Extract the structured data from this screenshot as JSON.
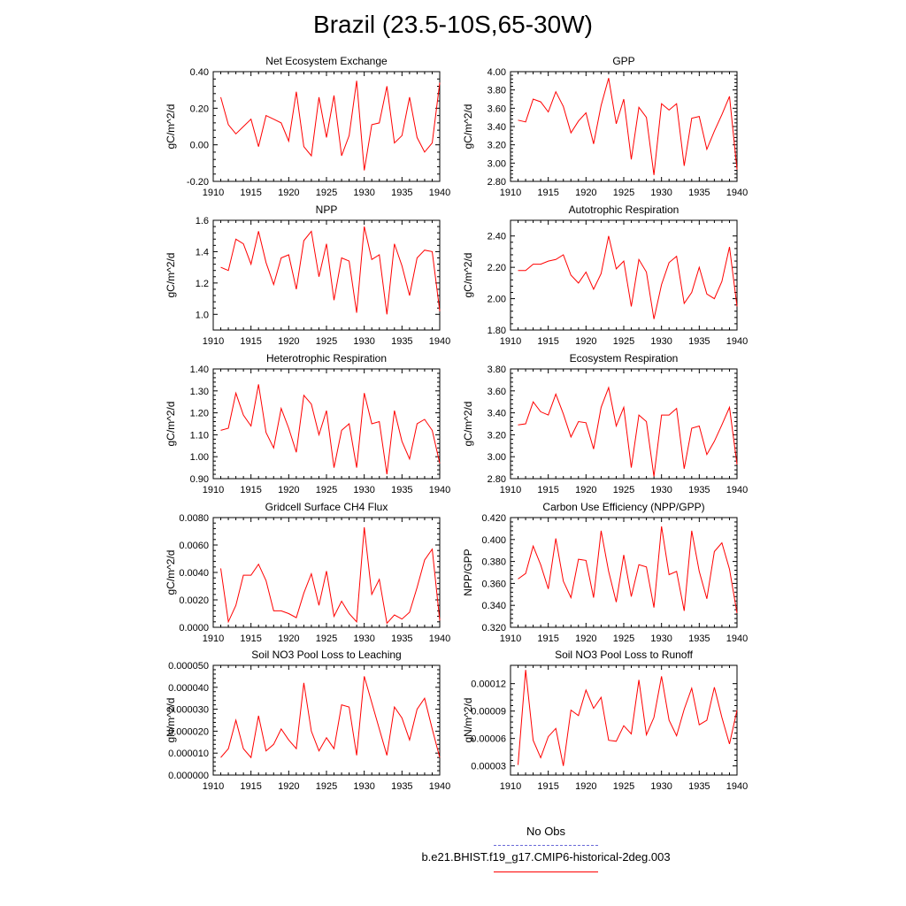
{
  "title": "Brazil (23.5-10S,65-30W)",
  "legend": {
    "obs_label": "No Obs",
    "obs_color": "#6a6ad8",
    "model_label": "b.e21.BHIST.f19_g17.CMIP6-historical-2deg.003",
    "model_color": "#ff0000"
  },
  "chart_data": [
    {
      "type": "line",
      "title": "Net Ecosystem Exchange",
      "ylabel": "gC/m^2/d",
      "xlim": [
        1910,
        1940
      ],
      "ylim": [
        -0.2,
        0.4
      ],
      "xticks": [
        1910,
        1915,
        1920,
        1925,
        1930,
        1935,
        1940
      ],
      "xtick_labels": [
        "1910",
        "1915",
        "1920",
        "1925",
        "1930",
        "1935",
        "1940"
      ],
      "yticks": [
        -0.2,
        0.0,
        0.2,
        0.4
      ],
      "ytick_labels": [
        "-0.20",
        "0.00",
        "0.20",
        "0.40"
      ],
      "x": [
        1911,
        1912,
        1913,
        1914,
        1915,
        1916,
        1917,
        1918,
        1919,
        1920,
        1921,
        1922,
        1923,
        1924,
        1925,
        1926,
        1927,
        1928,
        1929,
        1930,
        1931,
        1932,
        1933,
        1934,
        1935,
        1936,
        1937,
        1938,
        1939,
        1940
      ],
      "series": [
        {
          "values": [
            0.26,
            0.11,
            0.06,
            0.1,
            0.14,
            -0.01,
            0.16,
            0.14,
            0.12,
            0.02,
            0.29,
            -0.01,
            -0.06,
            0.26,
            0.04,
            0.27,
            -0.06,
            0.05,
            0.35,
            -0.14,
            0.11,
            0.12,
            0.32,
            0.01,
            0.05,
            0.26,
            0.04,
            -0.04,
            0.01,
            0.34
          ]
        }
      ]
    },
    {
      "type": "line",
      "title": "GPP",
      "ylabel": "gC/m^2/d",
      "xlim": [
        1910,
        1940
      ],
      "ylim": [
        2.8,
        4.0
      ],
      "xticks": [
        1910,
        1915,
        1920,
        1925,
        1930,
        1935,
        1940
      ],
      "xtick_labels": [
        "1910",
        "1915",
        "1920",
        "1925",
        "1930",
        "1935",
        "1940"
      ],
      "yticks": [
        2.8,
        3.0,
        3.2,
        3.4,
        3.6,
        3.8,
        4.0
      ],
      "ytick_labels": [
        "2.80",
        "3.00",
        "3.20",
        "3.40",
        "3.60",
        "3.80",
        "4.00"
      ],
      "x": [
        1911,
        1912,
        1913,
        1914,
        1915,
        1916,
        1917,
        1918,
        1919,
        1920,
        1921,
        1922,
        1923,
        1924,
        1925,
        1926,
        1927,
        1928,
        1929,
        1930,
        1931,
        1932,
        1933,
        1934,
        1935,
        1936,
        1937,
        1938,
        1939,
        1940
      ],
      "series": [
        {
          "values": [
            3.47,
            3.45,
            3.7,
            3.67,
            3.56,
            3.78,
            3.62,
            3.33,
            3.46,
            3.55,
            3.21,
            3.63,
            3.93,
            3.43,
            3.7,
            3.04,
            3.61,
            3.5,
            2.87,
            3.65,
            3.58,
            3.65,
            2.97,
            3.49,
            3.51,
            3.15,
            3.35,
            3.53,
            3.73,
            2.93
          ]
        }
      ]
    },
    {
      "type": "line",
      "title": "NPP",
      "ylabel": "gC/m^2/d",
      "xlim": [
        1910,
        1940
      ],
      "ylim": [
        0.9,
        1.6
      ],
      "xticks": [
        1910,
        1915,
        1920,
        1925,
        1930,
        1935,
        1940
      ],
      "xtick_labels": [
        "1910",
        "1915",
        "1920",
        "1925",
        "1930",
        "1935",
        "1940"
      ],
      "yticks": [
        1.0,
        1.2,
        1.4,
        1.6
      ],
      "ytick_labels": [
        "1.0",
        "1.2",
        "1.4",
        "1.6"
      ],
      "x": [
        1911,
        1912,
        1913,
        1914,
        1915,
        1916,
        1917,
        1918,
        1919,
        1920,
        1921,
        1922,
        1923,
        1924,
        1925,
        1926,
        1927,
        1928,
        1929,
        1930,
        1931,
        1932,
        1933,
        1934,
        1935,
        1936,
        1937,
        1938,
        1939,
        1940
      ],
      "series": [
        {
          "values": [
            1.3,
            1.28,
            1.48,
            1.45,
            1.32,
            1.53,
            1.33,
            1.19,
            1.36,
            1.38,
            1.16,
            1.47,
            1.53,
            1.24,
            1.45,
            1.09,
            1.36,
            1.34,
            1.01,
            1.56,
            1.35,
            1.38,
            1.0,
            1.45,
            1.31,
            1.12,
            1.36,
            1.41,
            1.4,
            1.02
          ]
        }
      ]
    },
    {
      "type": "line",
      "title": "Autotrophic Respiration",
      "ylabel": "gC/m^2/d",
      "xlim": [
        1910,
        1940
      ],
      "ylim": [
        1.8,
        2.5
      ],
      "xticks": [
        1910,
        1915,
        1920,
        1925,
        1930,
        1935,
        1940
      ],
      "xtick_labels": [
        "1910",
        "1915",
        "1920",
        "1925",
        "1930",
        "1935",
        "1940"
      ],
      "yticks": [
        1.8,
        2.0,
        2.2,
        2.4
      ],
      "ytick_labels": [
        "1.80",
        "2.00",
        "2.20",
        "2.40"
      ],
      "x": [
        1911,
        1912,
        1913,
        1914,
        1915,
        1916,
        1917,
        1918,
        1919,
        1920,
        1921,
        1922,
        1923,
        1924,
        1925,
        1926,
        1927,
        1928,
        1929,
        1930,
        1931,
        1932,
        1933,
        1934,
        1935,
        1936,
        1937,
        1938,
        1939,
        1940
      ],
      "series": [
        {
          "values": [
            2.18,
            2.18,
            2.22,
            2.22,
            2.24,
            2.25,
            2.28,
            2.15,
            2.1,
            2.17,
            2.06,
            2.16,
            2.4,
            2.19,
            2.24,
            1.95,
            2.25,
            2.17,
            1.87,
            2.09,
            2.23,
            2.27,
            1.97,
            2.04,
            2.2,
            2.03,
            2.0,
            2.11,
            2.33,
            1.95
          ]
        }
      ]
    },
    {
      "type": "line",
      "title": "Heterotrophic Respiration",
      "ylabel": "gC/m^2/d",
      "xlim": [
        1910,
        1940
      ],
      "ylim": [
        0.9,
        1.4
      ],
      "xticks": [
        1910,
        1915,
        1920,
        1925,
        1930,
        1935,
        1940
      ],
      "xtick_labels": [
        "1910",
        "1915",
        "1920",
        "1925",
        "1930",
        "1935",
        "1940"
      ],
      "yticks": [
        0.9,
        1.0,
        1.1,
        1.2,
        1.3,
        1.4
      ],
      "ytick_labels": [
        "0.90",
        "1.00",
        "1.10",
        "1.20",
        "1.30",
        "1.40"
      ],
      "x": [
        1911,
        1912,
        1913,
        1914,
        1915,
        1916,
        1917,
        1918,
        1919,
        1920,
        1921,
        1922,
        1923,
        1924,
        1925,
        1926,
        1927,
        1928,
        1929,
        1930,
        1931,
        1932,
        1933,
        1934,
        1935,
        1936,
        1937,
        1938,
        1939,
        1940
      ],
      "series": [
        {
          "values": [
            1.12,
            1.13,
            1.29,
            1.19,
            1.14,
            1.33,
            1.11,
            1.04,
            1.22,
            1.13,
            1.02,
            1.28,
            1.24,
            1.1,
            1.21,
            0.95,
            1.12,
            1.15,
            0.95,
            1.29,
            1.15,
            1.16,
            0.92,
            1.21,
            1.07,
            0.99,
            1.15,
            1.17,
            1.12,
            0.97
          ]
        }
      ]
    },
    {
      "type": "line",
      "title": "Ecosystem Respiration",
      "ylabel": "gC/m^2/d",
      "xlim": [
        1910,
        1940
      ],
      "ylim": [
        2.8,
        3.8
      ],
      "xticks": [
        1910,
        1915,
        1920,
        1925,
        1930,
        1935,
        1940
      ],
      "xtick_labels": [
        "1910",
        "1915",
        "1920",
        "1925",
        "1930",
        "1935",
        "1940"
      ],
      "yticks": [
        2.8,
        3.0,
        3.2,
        3.4,
        3.6,
        3.8
      ],
      "ytick_labels": [
        "2.80",
        "3.00",
        "3.20",
        "3.40",
        "3.60",
        "3.80"
      ],
      "x": [
        1911,
        1912,
        1913,
        1914,
        1915,
        1916,
        1917,
        1918,
        1919,
        1920,
        1921,
        1922,
        1923,
        1924,
        1925,
        1926,
        1927,
        1928,
        1929,
        1930,
        1931,
        1932,
        1933,
        1934,
        1935,
        1936,
        1937,
        1938,
        1939,
        1940
      ],
      "series": [
        {
          "values": [
            3.29,
            3.3,
            3.5,
            3.41,
            3.38,
            3.57,
            3.39,
            3.18,
            3.32,
            3.31,
            3.07,
            3.45,
            3.63,
            3.28,
            3.45,
            2.9,
            3.38,
            3.32,
            2.82,
            3.38,
            3.38,
            3.44,
            2.89,
            3.26,
            3.28,
            3.02,
            3.14,
            3.29,
            3.45,
            2.93
          ]
        }
      ]
    },
    {
      "type": "line",
      "title": "Gridcell Surface CH4 Flux",
      "ylabel": "gC/m^2/d",
      "xlim": [
        1910,
        1940
      ],
      "ylim": [
        0,
        0.008
      ],
      "xticks": [
        1910,
        1915,
        1920,
        1925,
        1930,
        1935,
        1940
      ],
      "xtick_labels": [
        "1910",
        "1915",
        "1920",
        "1925",
        "1930",
        "1935",
        "1940"
      ],
      "yticks": [
        0,
        0.002,
        0.004,
        0.006,
        0.008
      ],
      "ytick_labels": [
        "0.0000",
        "0.0020",
        "0.0040",
        "0.0060",
        "0.0080"
      ],
      "x": [
        1911,
        1912,
        1913,
        1914,
        1915,
        1916,
        1917,
        1918,
        1919,
        1920,
        1921,
        1922,
        1923,
        1924,
        1925,
        1926,
        1927,
        1928,
        1929,
        1930,
        1931,
        1932,
        1933,
        1934,
        1935,
        1936,
        1937,
        1938,
        1939,
        1940
      ],
      "series": [
        {
          "values": [
            0.0043,
            0.0004,
            0.0016,
            0.0038,
            0.0038,
            0.0046,
            0.0034,
            0.0012,
            0.0012,
            0.001,
            0.0007,
            0.0025,
            0.0039,
            0.0016,
            0.0041,
            0.0008,
            0.0019,
            0.001,
            0.0004,
            0.0073,
            0.0024,
            0.0035,
            0.0003,
            0.0009,
            0.0006,
            0.0011,
            0.0029,
            0.0049,
            0.0057,
            0.0005
          ]
        }
      ]
    },
    {
      "type": "line",
      "title": "Carbon Use Efficiency (NPP/GPP)",
      "ylabel": "NPP/GPP",
      "xlim": [
        1910,
        1940
      ],
      "ylim": [
        0.32,
        0.42
      ],
      "xticks": [
        1910,
        1915,
        1920,
        1925,
        1930,
        1935,
        1940
      ],
      "xtick_labels": [
        "1910",
        "1915",
        "1920",
        "1925",
        "1930",
        "1935",
        "1940"
      ],
      "yticks": [
        0.32,
        0.34,
        0.36,
        0.38,
        0.4,
        0.42
      ],
      "ytick_labels": [
        "0.320",
        "0.340",
        "0.360",
        "0.380",
        "0.400",
        "0.420"
      ],
      "x": [
        1911,
        1912,
        1913,
        1914,
        1915,
        1916,
        1917,
        1918,
        1919,
        1920,
        1921,
        1922,
        1923,
        1924,
        1925,
        1926,
        1927,
        1928,
        1929,
        1930,
        1931,
        1932,
        1933,
        1934,
        1935,
        1936,
        1937,
        1938,
        1939,
        1940
      ],
      "series": [
        {
          "values": [
            0.364,
            0.369,
            0.394,
            0.377,
            0.355,
            0.401,
            0.362,
            0.347,
            0.382,
            0.381,
            0.347,
            0.408,
            0.371,
            0.343,
            0.386,
            0.348,
            0.377,
            0.375,
            0.338,
            0.412,
            0.368,
            0.371,
            0.335,
            0.408,
            0.371,
            0.346,
            0.389,
            0.397,
            0.373,
            0.333
          ]
        }
      ]
    },
    {
      "type": "line",
      "title": "Soil NO3 Pool Loss to Leaching",
      "ylabel": "gN/m^2/d",
      "xlim": [
        1910,
        1940
      ],
      "ylim": [
        0,
        5e-05
      ],
      "xticks": [
        1910,
        1915,
        1920,
        1925,
        1930,
        1935,
        1940
      ],
      "xtick_labels": [
        "1910",
        "1915",
        "1920",
        "1925",
        "1930",
        "1935",
        "1940"
      ],
      "yticks": [
        0,
        1e-05,
        2e-05,
        3e-05,
        4e-05,
        5e-05
      ],
      "ytick_labels": [
        "0.000000",
        "0.000010",
        "0.000020",
        "0.000030",
        "0.000040",
        "0.000050"
      ],
      "x": [
        1911,
        1912,
        1913,
        1914,
        1915,
        1916,
        1917,
        1918,
        1919,
        1920,
        1921,
        1922,
        1923,
        1924,
        1925,
        1926,
        1927,
        1928,
        1929,
        1930,
        1931,
        1932,
        1933,
        1934,
        1935,
        1936,
        1937,
        1938,
        1939,
        1940
      ],
      "series": [
        {
          "values": [
            8e-06,
            1.2e-05,
            2.5e-05,
            1.2e-05,
            8e-06,
            2.7e-05,
            1.1e-05,
            1.4e-05,
            2.1e-05,
            1.6e-05,
            1.2e-05,
            4.2e-05,
            2e-05,
            1.1e-05,
            1.7e-05,
            1.2e-05,
            3.2e-05,
            3.1e-05,
            9e-06,
            4.5e-05,
            3.3e-05,
            2.1e-05,
            9e-06,
            3.1e-05,
            2.6e-05,
            1.6e-05,
            3e-05,
            3.5e-05,
            2.1e-05,
            8e-06
          ]
        }
      ]
    },
    {
      "type": "line",
      "title": "Soil NO3 Pool Loss to Runoff",
      "ylabel": "gN/m^2/d",
      "xlim": [
        1910,
        1940
      ],
      "ylim": [
        2e-05,
        0.00014
      ],
      "xticks": [
        1910,
        1915,
        1920,
        1925,
        1930,
        1935,
        1940
      ],
      "xtick_labels": [
        "1910",
        "1915",
        "1920",
        "1925",
        "1930",
        "1935",
        "1940"
      ],
      "yticks": [
        3e-05,
        6e-05,
        9e-05,
        0.00012
      ],
      "ytick_labels": [
        "0.00003",
        "0.00006",
        "0.00009",
        "0.00012"
      ],
      "x": [
        1911,
        1912,
        1913,
        1914,
        1915,
        1916,
        1917,
        1918,
        1919,
        1920,
        1921,
        1922,
        1923,
        1924,
        1925,
        1926,
        1927,
        1928,
        1929,
        1930,
        1931,
        1932,
        1933,
        1934,
        1935,
        1936,
        1937,
        1938,
        1939,
        1940
      ],
      "series": [
        {
          "values": [
            3.1e-05,
            0.000135,
            5.8e-05,
            3.9e-05,
            6.2e-05,
            7.1e-05,
            3e-05,
            9.1e-05,
            8.5e-05,
            0.000113,
            9.3e-05,
            0.000105,
            5.8e-05,
            5.7e-05,
            7.4e-05,
            6.5e-05,
            0.000124,
            6.4e-05,
            8.3e-05,
            0.000128,
            8e-05,
            6.3e-05,
            9.2e-05,
            0.000115,
            7.5e-05,
            8e-05,
            0.000116,
            8.3e-05,
            5.4e-05,
            9.1e-05
          ]
        }
      ]
    }
  ]
}
